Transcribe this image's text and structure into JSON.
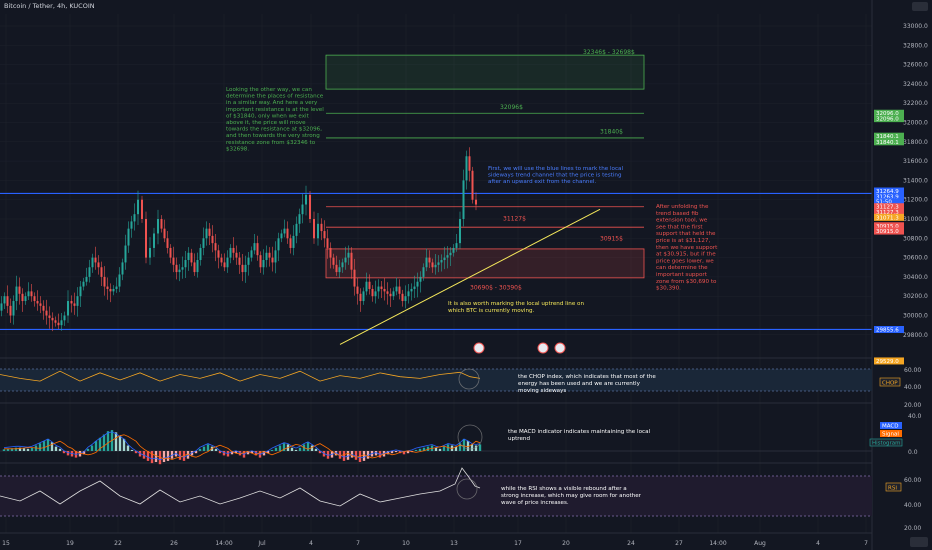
{
  "header": {
    "title": "Bitcoin / Tether, 4h, KUCOIN"
  },
  "colors": {
    "bg": "#131722",
    "grid": "#1e222d",
    "up": "#26a69a",
    "down": "#ef5350",
    "blue": "#2962ff",
    "green": "#4caf50",
    "red": "#ef5350",
    "yellow": "#f5e85b",
    "white": "#ffffff",
    "panel": "#1c2331"
  },
  "price_axis": {
    "ticks": [
      "33000.0",
      "32800.0",
      "32600.0",
      "32400.0",
      "32200.0",
      "32000.0",
      "31800.0",
      "31600.0",
      "31400.0",
      "31200.0",
      "31000.0",
      "30800.0",
      "30600.0",
      "30400.0",
      "30200.0",
      "30000.0",
      "29800.0"
    ],
    "tags": [
      {
        "label": "32096.0",
        "price": 32096,
        "color": "#4caf50"
      },
      {
        "label": "32096.0",
        "price": 32040,
        "color": "#4caf50"
      },
      {
        "label": "31840.1",
        "price": 31858,
        "color": "#4caf50"
      },
      {
        "label": "31840.1",
        "price": 31800,
        "color": "#4caf50"
      },
      {
        "label": "31264.9",
        "price": 31290,
        "color": "#2962ff"
      },
      {
        "label": "31263.9",
        "price": 31233,
        "color": "#2962ff"
      },
      {
        "label": "51:50",
        "price": 31180,
        "color": "#2962ff"
      },
      {
        "label": "31127.3",
        "price": 31127,
        "color": "#ef5350"
      },
      {
        "label": "31127.3",
        "price": 31072,
        "color": "#ef5350"
      },
      {
        "label": "31071.3",
        "price": 31017,
        "color": "#f5a623"
      },
      {
        "label": "30915.0",
        "price": 30930,
        "color": "#ef5350"
      },
      {
        "label": "30915.0",
        "price": 30875,
        "color": "#ef5350"
      },
      {
        "label": "29855.6",
        "price": 29855,
        "color": "#2962ff"
      },
      {
        "label": "29529.0",
        "price": 29529,
        "color": "#f5a623"
      }
    ]
  },
  "time_axis": {
    "labels": [
      {
        "t": "15",
        "x": 6
      },
      {
        "t": "19",
        "x": 70
      },
      {
        "t": "22",
        "x": 118
      },
      {
        "t": "26",
        "x": 174
      },
      {
        "t": "14:00",
        "x": 224
      },
      {
        "t": "Jul",
        "x": 262
      },
      {
        "t": "4",
        "x": 311
      },
      {
        "t": "7",
        "x": 358
      },
      {
        "t": "10",
        "x": 406
      },
      {
        "t": "13",
        "x": 454
      },
      {
        "t": "17",
        "x": 518
      },
      {
        "t": "20",
        "x": 566
      },
      {
        "t": "24",
        "x": 631
      },
      {
        "t": "27",
        "x": 679
      },
      {
        "t": "14:00",
        "x": 718
      },
      {
        "t": "Aug",
        "x": 760
      },
      {
        "t": "4",
        "x": 818
      },
      {
        "t": "7",
        "x": 866
      }
    ]
  },
  "annotations": {
    "zone_top": "32346$ - 32698$",
    "level_32096": "32096$",
    "level_31840": "31840$",
    "level_31127": "31127$",
    "level_30915": "30915$",
    "zone_bottom": "30690$ - 30390$",
    "green_note": [
      "Looking the other way, we can",
      "determine the places of resistance",
      "in a similar way. And here a very",
      "important resistance is at the level",
      "of $31840, only when we exit",
      "above it, the price will move",
      "towards the resistance at $32096,",
      "and then towards the very strong",
      "resistance zone from $32346 to",
      "$32698."
    ],
    "blue_note": [
      "First, we will use the blue lines to mark the local",
      "sideways trend channel that the price is testing",
      "after an upward exit from the channel."
    ],
    "red_note": [
      "After unfolding the",
      "trend based fib",
      "extension tool, we",
      "see that the first",
      "support that held the",
      "price is at $31,127,",
      "then we have support",
      "at $30,915, but if the",
      "price goes lower, we",
      "can determine the",
      "important support",
      "zone from $30,690 to",
      "$30,390."
    ],
    "yellow_note": [
      "It is also worth marking the local uptrend line on",
      "which BTC is currently moving."
    ]
  },
  "chop": {
    "label": "CHOP",
    "ticks": [
      "60.00",
      "40.00",
      "20.00"
    ],
    "note": [
      "the CHOP index, which indicates that most of the",
      "energy has been used and we are currently",
      "moving sideways"
    ]
  },
  "macd": {
    "labels": [
      "MACD",
      "Signal",
      "Histogram"
    ],
    "ticks": [
      "40.0",
      "0.0"
    ],
    "note": [
      "the MACD indicator indicates maintaining the local",
      "uptrend"
    ]
  },
  "rsi": {
    "label": "RSI",
    "ticks": [
      "60.00",
      "40.00",
      "20.00"
    ],
    "note": [
      "while the RSI shows a visible rebound after a",
      "strong increase, which may give room for another",
      "wave of price increases."
    ]
  },
  "chart_data": {
    "type": "candlestick",
    "title": "Bitcoin / Tether, 4h, KUCOIN",
    "ylim": [
      29500,
      33100
    ],
    "blue_channel": [
      31264.9,
      29855.6
    ],
    "resistance_levels": [
      32096,
      31840
    ],
    "support_levels": [
      31127,
      30915
    ],
    "resistance_zone": [
      32346,
      32698
    ],
    "support_zone": [
      30390,
      30690
    ],
    "uptrend_line": [
      {
        "x": 340,
        "price": 29700
      },
      {
        "x": 600,
        "price": 31100
      }
    ],
    "price_path": [
      [
        0,
        30050
      ],
      [
        6,
        30200
      ],
      [
        12,
        30000
      ],
      [
        18,
        30300
      ],
      [
        24,
        30150
      ],
      [
        30,
        30250
      ],
      [
        36,
        30150
      ],
      [
        42,
        30100
      ],
      [
        48,
        30000
      ],
      [
        54,
        29950
      ],
      [
        60,
        29900
      ],
      [
        66,
        30000
      ],
      [
        70,
        30150
      ],
      [
        76,
        30100
      ],
      [
        82,
        30300
      ],
      [
        88,
        30400
      ],
      [
        94,
        30600
      ],
      [
        100,
        30500
      ],
      [
        106,
        30300
      ],
      [
        112,
        30250
      ],
      [
        118,
        30300
      ],
      [
        124,
        30550
      ],
      [
        130,
        30900
      ],
      [
        136,
        31050
      ],
      [
        140,
        31200
      ],
      [
        144,
        31000
      ],
      [
        148,
        30600
      ],
      [
        152,
        30700
      ],
      [
        156,
        30850
      ],
      [
        160,
        31000
      ],
      [
        166,
        30800
      ],
      [
        172,
        30600
      ],
      [
        178,
        30450
      ],
      [
        184,
        30500
      ],
      [
        190,
        30650
      ],
      [
        196,
        30450
      ],
      [
        202,
        30700
      ],
      [
        208,
        30900
      ],
      [
        214,
        30750
      ],
      [
        220,
        30600
      ],
      [
        226,
        30500
      ],
      [
        232,
        30700
      ],
      [
        238,
        30600
      ],
      [
        244,
        30450
      ],
      [
        250,
        30600
      ],
      [
        256,
        30750
      ],
      [
        262,
        30500
      ],
      [
        268,
        30650
      ],
      [
        274,
        30550
      ],
      [
        280,
        30800
      ],
      [
        286,
        30900
      ],
      [
        292,
        30700
      ],
      [
        298,
        30950
      ],
      [
        304,
        31150
      ],
      [
        308,
        31250
      ],
      [
        312,
        31000
      ],
      [
        316,
        30800
      ],
      [
        320,
        30950
      ],
      [
        326,
        30800
      ],
      [
        332,
        30600
      ],
      [
        338,
        30450
      ],
      [
        344,
        30550
      ],
      [
        350,
        30650
      ],
      [
        356,
        30300
      ],
      [
        362,
        30150
      ],
      [
        368,
        30350
      ],
      [
        374,
        30200
      ],
      [
        380,
        30300
      ],
      [
        386,
        30250
      ],
      [
        392,
        30200
      ],
      [
        398,
        30300
      ],
      [
        404,
        30150
      ],
      [
        410,
        30250
      ],
      [
        416,
        30300
      ],
      [
        422,
        30400
      ],
      [
        428,
        30600
      ],
      [
        434,
        30500
      ],
      [
        440,
        30550
      ],
      [
        446,
        30600
      ],
      [
        452,
        30650
      ],
      [
        458,
        30750
      ],
      [
        462,
        31000
      ],
      [
        465,
        31400
      ],
      [
        468,
        31650
      ],
      [
        471,
        31500
      ],
      [
        474,
        31200
      ],
      [
        478,
        31150
      ]
    ],
    "chop_path": [
      [
        0,
        52
      ],
      [
        20,
        45
      ],
      [
        40,
        40
      ],
      [
        60,
        58
      ],
      [
        80,
        40
      ],
      [
        100,
        55
      ],
      [
        120,
        42
      ],
      [
        140,
        55
      ],
      [
        160,
        40
      ],
      [
        180,
        52
      ],
      [
        200,
        45
      ],
      [
        220,
        55
      ],
      [
        240,
        40
      ],
      [
        260,
        52
      ],
      [
        280,
        45
      ],
      [
        300,
        58
      ],
      [
        320,
        40
      ],
      [
        340,
        50
      ],
      [
        360,
        45
      ],
      [
        380,
        55
      ],
      [
        400,
        48
      ],
      [
        420,
        45
      ],
      [
        440,
        52
      ],
      [
        460,
        56
      ],
      [
        470,
        48
      ],
      [
        480,
        45
      ]
    ],
    "macd_hist": [
      [
        4,
        3
      ],
      [
        8,
        4
      ],
      [
        12,
        5
      ],
      [
        16,
        6
      ],
      [
        20,
        6
      ],
      [
        24,
        5
      ],
      [
        28,
        4
      ],
      [
        32,
        6
      ],
      [
        36,
        10
      ],
      [
        40,
        14
      ],
      [
        44,
        18
      ],
      [
        48,
        22
      ],
      [
        52,
        16
      ],
      [
        56,
        8
      ],
      [
        60,
        4
      ],
      [
        64,
        -4
      ],
      [
        68,
        -8
      ],
      [
        72,
        -10
      ],
      [
        76,
        -12
      ],
      [
        80,
        -10
      ],
      [
        84,
        -6
      ],
      [
        88,
        4
      ],
      [
        92,
        10
      ],
      [
        96,
        18
      ],
      [
        100,
        24
      ],
      [
        104,
        30
      ],
      [
        108,
        36
      ],
      [
        112,
        38
      ],
      [
        116,
        34
      ],
      [
        120,
        28
      ],
      [
        124,
        22
      ],
      [
        128,
        10
      ],
      [
        132,
        2
      ],
      [
        136,
        -4
      ],
      [
        140,
        -10
      ],
      [
        144,
        -14
      ],
      [
        148,
        -18
      ],
      [
        152,
        -22
      ],
      [
        156,
        -20
      ],
      [
        160,
        -24
      ],
      [
        164,
        -20
      ],
      [
        168,
        -18
      ],
      [
        172,
        -14
      ],
      [
        176,
        -10
      ],
      [
        180,
        -16
      ],
      [
        184,
        -18
      ],
      [
        188,
        -14
      ],
      [
        192,
        -8
      ],
      [
        196,
        -4
      ],
      [
        200,
        4
      ],
      [
        204,
        8
      ],
      [
        208,
        12
      ],
      [
        212,
        8
      ],
      [
        216,
        4
      ],
      [
        220,
        -4
      ],
      [
        224,
        -8
      ],
      [
        228,
        -10
      ],
      [
        232,
        -6
      ],
      [
        236,
        -4
      ],
      [
        240,
        -8
      ],
      [
        244,
        -12
      ],
      [
        248,
        -6
      ],
      [
        252,
        -4
      ],
      [
        256,
        -8
      ],
      [
        260,
        -12
      ],
      [
        264,
        -8
      ],
      [
        268,
        -4
      ],
      [
        272,
        2
      ],
      [
        276,
        6
      ],
      [
        280,
        10
      ],
      [
        284,
        14
      ],
      [
        288,
        12
      ],
      [
        292,
        6
      ],
      [
        296,
        2
      ],
      [
        300,
        6
      ],
      [
        304,
        12
      ],
      [
        308,
        16
      ],
      [
        312,
        10
      ],
      [
        316,
        4
      ],
      [
        320,
        -4
      ],
      [
        324,
        -10
      ],
      [
        328,
        -14
      ],
      [
        332,
        -12
      ],
      [
        336,
        -8
      ],
      [
        340,
        -14
      ],
      [
        344,
        -18
      ],
      [
        348,
        -16
      ],
      [
        352,
        -12
      ],
      [
        356,
        -16
      ],
      [
        360,
        -20
      ],
      [
        364,
        -18
      ],
      [
        368,
        -14
      ],
      [
        372,
        -10
      ],
      [
        376,
        -8
      ],
      [
        380,
        -12
      ],
      [
        384,
        -10
      ],
      [
        388,
        -6
      ],
      [
        392,
        -4
      ],
      [
        396,
        -2
      ],
      [
        400,
        -4
      ],
      [
        404,
        -6
      ],
      [
        408,
        -4
      ],
      [
        412,
        -2
      ],
      [
        416,
        2
      ],
      [
        420,
        4
      ],
      [
        424,
        6
      ],
      [
        428,
        8
      ],
      [
        432,
        10
      ],
      [
        436,
        6
      ],
      [
        440,
        4
      ],
      [
        444,
        8
      ],
      [
        448,
        12
      ],
      [
        452,
        10
      ],
      [
        456,
        8
      ],
      [
        460,
        14
      ],
      [
        464,
        22
      ],
      [
        468,
        18
      ],
      [
        472,
        12
      ],
      [
        476,
        10
      ],
      [
        480,
        12
      ]
    ],
    "rsi_path": [
      [
        0,
        50
      ],
      [
        20,
        45
      ],
      [
        40,
        55
      ],
      [
        60,
        42
      ],
      [
        80,
        55
      ],
      [
        100,
        65
      ],
      [
        120,
        50
      ],
      [
        140,
        42
      ],
      [
        160,
        56
      ],
      [
        180,
        44
      ],
      [
        200,
        50
      ],
      [
        220,
        42
      ],
      [
        240,
        48
      ],
      [
        260,
        55
      ],
      [
        280,
        48
      ],
      [
        300,
        58
      ],
      [
        320,
        45
      ],
      [
        340,
        40
      ],
      [
        360,
        52
      ],
      [
        380,
        44
      ],
      [
        400,
        48
      ],
      [
        420,
        52
      ],
      [
        440,
        55
      ],
      [
        455,
        62
      ],
      [
        462,
        78
      ],
      [
        468,
        70
      ],
      [
        475,
        60
      ],
      [
        480,
        58
      ]
    ]
  }
}
